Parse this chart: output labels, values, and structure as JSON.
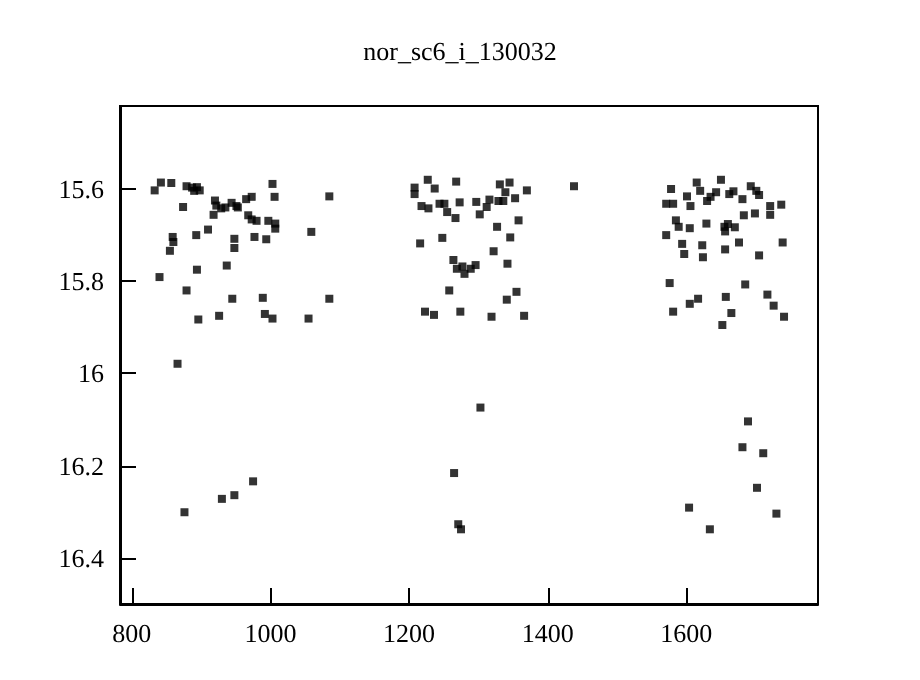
{
  "chart_data": {
    "type": "scatter",
    "title": "nor_sc6_i_130032",
    "x": [
      833,
      842,
      857,
      874,
      879,
      887,
      890,
      894,
      898,
      920,
      918,
      922,
      929,
      935,
      944,
      951,
      953,
      965,
      973,
      968,
      973,
      980,
      997,
      1007,
      1007,
      1003,
      1006,
      994,
      977,
      948,
      948,
      910,
      893,
      859,
      860,
      855,
      840,
      894,
      937,
      879,
      945,
      989,
      992,
      1003,
      926,
      896,
      1055,
      1085,
      1085,
      1059,
      866,
      876,
      930,
      948,
      975,
      1265,
      1303,
      1271,
      1275,
      1604,
      1634,
      1681,
      1689,
      1711,
      1702,
      1730,
      1208,
      1208,
      1227,
      1237,
      1218,
      1228,
      1244,
      1251,
      1255,
      1268,
      1267,
      1273,
      1297,
      1316,
      1312,
      1302,
      1329,
      1336,
      1331,
      1345,
      1339,
      1353,
      1370,
      1358,
      1327,
      1346,
      1216,
      1248,
      1264,
      1269,
      1277,
      1280,
      1289,
      1296,
      1322,
      1342,
      1258,
      1341,
      1355,
      1223,
      1236,
      1274,
      1319,
      1366,
      1438,
      1578,
      1571,
      1581,
      1601,
      1606,
      1615,
      1620,
      1630,
      1635,
      1643,
      1650,
      1662,
      1668,
      1681,
      1693,
      1701,
      1705,
      1721,
      1737,
      1683,
      1699,
      1721,
      1585,
      1589,
      1571,
      1605,
      1629,
      1655,
      1660,
      1670,
      1656,
      1594,
      1623,
      1597,
      1624,
      1656,
      1676,
      1705,
      1739,
      1576,
      1685,
      1717,
      1726,
      1741,
      1581,
      1605,
      1617,
      1657,
      1665,
      1652
    ],
    "values": [
      15.603,
      15.586,
      15.587,
      15.639,
      15.594,
      15.597,
      15.604,
      15.596,
      15.603,
      15.625,
      15.656,
      15.636,
      15.642,
      15.64,
      15.63,
      15.637,
      15.64,
      15.622,
      15.617,
      15.657,
      15.666,
      15.669,
      15.669,
      15.675,
      15.686,
      15.589,
      15.617,
      15.709,
      15.704,
      15.708,
      15.728,
      15.688,
      15.7,
      15.704,
      15.715,
      15.734,
      15.791,
      15.775,
      15.766,
      15.82,
      15.838,
      15.836,
      15.871,
      15.881,
      15.875,
      15.883,
      15.881,
      15.838,
      15.616,
      15.693,
      15.979,
      16.301,
      16.272,
      16.264,
      16.234,
      16.216,
      16.074,
      16.327,
      16.338,
      16.291,
      16.338,
      16.16,
      16.104,
      16.173,
      16.248,
      16.304,
      15.597,
      15.611,
      15.58,
      15.599,
      15.637,
      15.642,
      15.632,
      15.632,
      15.65,
      15.584,
      15.663,
      15.629,
      15.628,
      15.623,
      15.639,
      15.655,
      15.626,
      15.626,
      15.59,
      15.586,
      15.607,
      15.62,
      15.603,
      15.668,
      15.682,
      15.705,
      15.718,
      15.706,
      15.754,
      15.773,
      15.768,
      15.784,
      15.773,
      15.765,
      15.735,
      15.762,
      15.82,
      15.84,
      15.823,
      15.866,
      15.873,
      15.866,
      15.877,
      15.875,
      15.594,
      15.6,
      15.632,
      15.632,
      15.616,
      15.637,
      15.586,
      15.604,
      15.626,
      15.617,
      15.607,
      15.58,
      15.611,
      15.605,
      15.622,
      15.594,
      15.604,
      15.613,
      15.637,
      15.634,
      15.657,
      15.653,
      15.656,
      15.668,
      15.682,
      15.7,
      15.685,
      15.675,
      15.682,
      15.676,
      15.683,
      15.692,
      15.719,
      15.722,
      15.741,
      15.748,
      15.731,
      15.716,
      15.744,
      15.716,
      15.804,
      15.807,
      15.829,
      15.853,
      15.877,
      15.866,
      15.849,
      15.838,
      15.834,
      15.869,
      15.895
    ],
    "color": "#000000",
    "marker": "square",
    "xlim": [
      783,
      1790
    ],
    "xticks": [
      800,
      1000,
      1200,
      1400,
      1600
    ],
    "ylim": [
      16.5,
      15.42
    ],
    "yticks": [
      15.6,
      15.8,
      16,
      16.2,
      16.4
    ],
    "grid": false
  }
}
